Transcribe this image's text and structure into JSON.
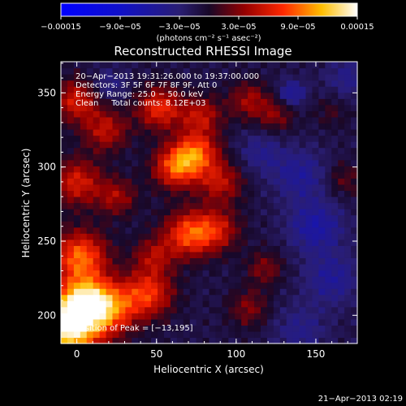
{
  "chart_data": {
    "type": "heatmap",
    "title": "Reconstructed RHESSI Image",
    "xlabel": "Heliocentric X (arcsec)",
    "ylabel": "Heliocentric Y (arcsec)",
    "xlim": [
      -10,
      176
    ],
    "ylim": [
      181,
      371
    ],
    "x_ticks": [
      0,
      50,
      100,
      150
    ],
    "y_ticks": [
      200,
      250,
      300,
      350
    ],
    "colorbar": {
      "min": -0.00015,
      "max": 0.00015,
      "ticks": [
        -0.00015,
        -9e-05,
        -3e-05,
        3e-05,
        9e-05,
        0.00015
      ],
      "tick_labels": [
        "−0.00015",
        "−9.0e−05",
        "−3.0e−05",
        "3.0e−05",
        "9.0e−05",
        "0.00015"
      ],
      "unit_label": "(photons cm⁻² s⁻¹ asec⁻²)"
    },
    "annotations": [
      "20−Apr−2013 19:31:26.000 to 19:37:00.000",
      "Detectors: 3F 5F 6F 7F 8F 9F, Att 0",
      "Energy Range: 25.0 − 50.0 keV",
      "Clean     Total counts: 8.12E+03"
    ],
    "peak_label": "Position of Peak = [−13,195]",
    "timestamp": "21−Apr−2013 02:19",
    "blobs": [
      {
        "x": -5,
        "y": 192,
        "v": 0.00015,
        "r": 14
      },
      {
        "x": 5,
        "y": 210,
        "v": 0.00011,
        "r": 12
      },
      {
        "x": 2,
        "y": 240,
        "v": 0.0001,
        "r": 12
      },
      {
        "x": 22,
        "y": 205,
        "v": 8e-05,
        "r": 12
      },
      {
        "x": 45,
        "y": 215,
        "v": 8e-05,
        "r": 11
      },
      {
        "x": 48,
        "y": 240,
        "v": 5e-05,
        "r": 9
      },
      {
        "x": 70,
        "y": 255,
        "v": 9e-05,
        "r": 11
      },
      {
        "x": 88,
        "y": 258,
        "v": 6e-05,
        "r": 10
      },
      {
        "x": 62,
        "y": 300,
        "v": 9e-05,
        "r": 10
      },
      {
        "x": 75,
        "y": 310,
        "v": 9e-05,
        "r": 10
      },
      {
        "x": 52,
        "y": 340,
        "v": 8e-05,
        "r": 10
      },
      {
        "x": 78,
        "y": 335,
        "v": 6e-05,
        "r": 9
      },
      {
        "x": 90,
        "y": 290,
        "v": 6e-05,
        "r": 10
      },
      {
        "x": 18,
        "y": 325,
        "v": 6e-05,
        "r": 10
      },
      {
        "x": 0,
        "y": 345,
        "v": 7e-05,
        "r": 10
      },
      {
        "x": 0,
        "y": 290,
        "v": 7e-05,
        "r": 11
      },
      {
        "x": 25,
        "y": 280,
        "v": 5e-05,
        "r": 9
      },
      {
        "x": 108,
        "y": 345,
        "v": 5e-05,
        "r": 9
      },
      {
        "x": 125,
        "y": 335,
        "v": 4e-05,
        "r": 8
      },
      {
        "x": 108,
        "y": 205,
        "v": 4e-05,
        "r": 9
      },
      {
        "x": 118,
        "y": 232,
        "v": 4e-05,
        "r": 8
      },
      {
        "x": 168,
        "y": 292,
        "v": 3e-05,
        "r": 8
      },
      {
        "x": 160,
        "y": 338,
        "v": 2e-05,
        "r": 8
      },
      {
        "x": 150,
        "y": 260,
        "v": -5e-05,
        "r": 12
      },
      {
        "x": 140,
        "y": 295,
        "v": -4e-05,
        "r": 12
      },
      {
        "x": 160,
        "y": 225,
        "v": -4e-05,
        "r": 12
      },
      {
        "x": 140,
        "y": 190,
        "v": -3e-05,
        "r": 12
      },
      {
        "x": 115,
        "y": 310,
        "v": -3e-05,
        "r": 10
      },
      {
        "x": 20,
        "y": 355,
        "v": -3e-05,
        "r": 8
      },
      {
        "x": 170,
        "y": 360,
        "v": -3e-05,
        "r": 10
      },
      {
        "x": 135,
        "y": 350,
        "v": -5e-05,
        "r": 6
      }
    ]
  }
}
